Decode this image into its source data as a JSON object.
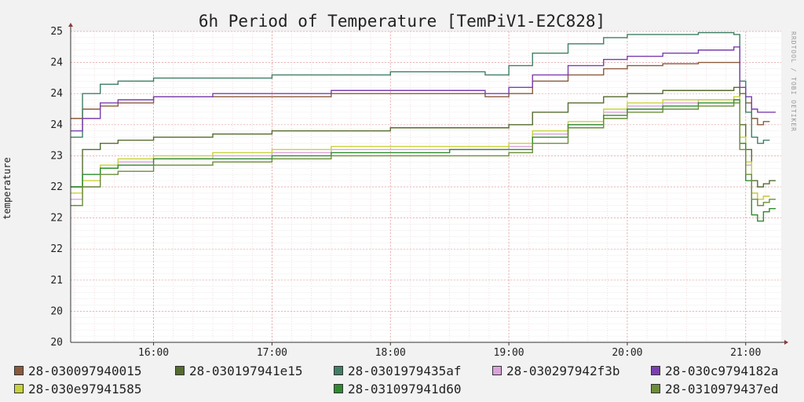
{
  "chart_data": {
    "type": "line",
    "title": "6h Period of Temperature [TemPiV1-E2C828]",
    "ylabel": "temperature",
    "watermark": "RRDTOOL / TOBI OETIKER",
    "ylim": [
      20,
      25
    ],
    "yticks": [
      "20",
      "20",
      "21",
      "22",
      "22",
      "22",
      "23",
      "24",
      "24",
      "24",
      "25"
    ],
    "xlim": [
      15.3,
      21.3
    ],
    "xticks": [
      {
        "value": 16,
        "label": "16:00"
      },
      {
        "value": 17,
        "label": "17:00"
      },
      {
        "value": 18,
        "label": "18:00"
      },
      {
        "value": 19,
        "label": "19:00"
      },
      {
        "value": 20,
        "label": "20:00"
      },
      {
        "value": 21,
        "label": "21:00"
      }
    ],
    "grid": true,
    "legend": "bottom",
    "x": [
      15.3,
      15.4,
      15.55,
      15.7,
      16.0,
      16.5,
      17.0,
      17.5,
      18.0,
      18.5,
      18.8,
      19.0,
      19.2,
      19.5,
      19.8,
      20.0,
      20.3,
      20.6,
      20.9,
      20.95,
      21.0,
      21.05,
      21.1,
      21.15,
      21.2,
      21.25
    ],
    "series": [
      {
        "name": "28-030097940015",
        "color": "#8b5a3c",
        "values": [
          23.6,
          23.75,
          23.8,
          23.85,
          23.95,
          23.95,
          23.95,
          24.0,
          24.0,
          24.0,
          23.95,
          24.0,
          24.2,
          24.3,
          24.4,
          24.45,
          24.48,
          24.5,
          24.5,
          24.0,
          23.85,
          23.6,
          23.5,
          23.55,
          null,
          null
        ]
      },
      {
        "name": "28-030197941e15",
        "color": "#556b2f",
        "values": [
          22.5,
          23.1,
          23.2,
          23.25,
          23.3,
          23.35,
          23.4,
          23.4,
          23.45,
          23.45,
          23.45,
          23.5,
          23.7,
          23.85,
          23.95,
          24.0,
          24.05,
          24.05,
          24.1,
          23.5,
          23.1,
          22.6,
          22.5,
          22.55,
          22.6,
          null
        ]
      },
      {
        "name": "28-0301979435af",
        "color": "#3f7f65",
        "values": [
          23.3,
          24.0,
          24.15,
          24.2,
          24.25,
          24.25,
          24.3,
          24.3,
          24.35,
          24.35,
          24.3,
          24.45,
          24.65,
          24.8,
          24.9,
          24.95,
          24.95,
          24.98,
          24.95,
          24.2,
          23.7,
          23.3,
          23.2,
          23.25,
          null,
          null
        ]
      },
      {
        "name": "28-030297942f3b",
        "color": "#d9a3d9",
        "values": [
          22.3,
          22.5,
          22.8,
          22.9,
          22.95,
          23.0,
          23.05,
          23.1,
          23.1,
          23.1,
          23.1,
          23.15,
          23.35,
          23.5,
          23.7,
          23.8,
          23.85,
          23.9,
          23.9,
          23.2,
          22.85,
          22.4,
          22.3,
          22.35,
          null,
          null
        ]
      },
      {
        "name": "28-030c9794182a",
        "color": "#7a3fb0",
        "values": [
          23.4,
          23.6,
          23.85,
          23.9,
          23.95,
          24.0,
          24.0,
          24.05,
          24.05,
          24.05,
          24.0,
          24.1,
          24.3,
          24.45,
          24.55,
          24.6,
          24.65,
          24.7,
          24.75,
          24.1,
          23.95,
          23.75,
          23.7,
          23.7,
          23.7,
          null
        ]
      },
      {
        "name": "28-030e97941585",
        "color": "#c8d23c",
        "values": [
          22.4,
          22.6,
          22.85,
          22.95,
          23.0,
          23.05,
          23.1,
          23.15,
          23.15,
          23.15,
          23.15,
          23.2,
          23.4,
          23.55,
          23.75,
          23.85,
          23.9,
          23.9,
          23.95,
          23.3,
          22.9,
          22.4,
          22.3,
          22.35,
          null,
          null
        ]
      },
      {
        "name": "28-031097941d60",
        "color": "#2e8b2e",
        "values": [
          22.5,
          22.7,
          22.8,
          22.85,
          22.95,
          22.95,
          23.0,
          23.05,
          23.05,
          23.1,
          23.1,
          23.1,
          23.3,
          23.5,
          23.65,
          23.75,
          23.8,
          23.85,
          23.9,
          23.2,
          22.6,
          22.05,
          21.95,
          22.1,
          22.15,
          null
        ]
      },
      {
        "name": "28-0310979437ed",
        "color": "#6b8e3a",
        "values": [
          22.2,
          22.5,
          22.7,
          22.75,
          22.85,
          22.9,
          22.95,
          23.0,
          23.0,
          23.0,
          23.0,
          23.05,
          23.2,
          23.45,
          23.6,
          23.7,
          23.75,
          23.8,
          23.85,
          23.1,
          22.7,
          22.3,
          22.2,
          22.25,
          22.3,
          null
        ]
      }
    ]
  }
}
